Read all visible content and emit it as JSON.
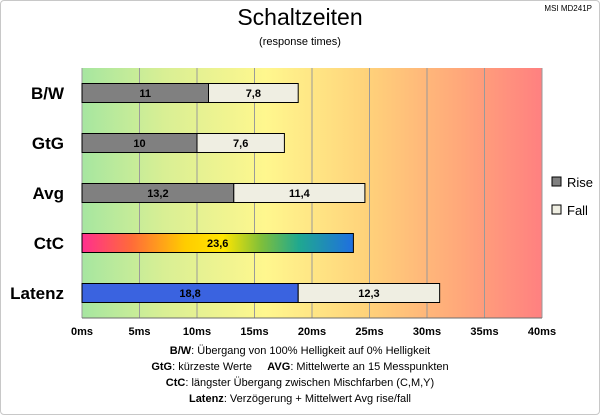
{
  "header": {
    "title": "Schaltzeiten",
    "subtitle": "(response times)",
    "model": "MSI MD241P"
  },
  "notes": [
    {
      "key": "B/W",
      "text": ":  Übergang von 100% Helligkeit auf 0% Helligkeit"
    },
    {
      "key": "GtG",
      "text": ": kürzeste  Werte",
      "key2": "AVG",
      "text2": ": Mittelwerte  an 15 Messpunkten"
    },
    {
      "key": "CtC",
      "text": ": längster Übergang  zwischen Mischfarben  (C,M,Y)"
    },
    {
      "key": "Latenz",
      "text": ": Verzögerung  + Mittelwert  Avg rise/fall"
    }
  ],
  "chart_data": {
    "type": "bar",
    "orientation": "horizontal",
    "stacked": true,
    "title": "Schaltzeiten",
    "subtitle": "(response times)",
    "categories": [
      "B/W",
      "GtG",
      "Avg",
      "CtC",
      "Latenz"
    ],
    "series": [
      {
        "name": "Rise",
        "values": [
          11,
          10,
          13.2,
          null,
          null
        ],
        "labels": [
          "11",
          "10",
          "13,2",
          "",
          ""
        ],
        "color": "#808080"
      },
      {
        "name": "Fall",
        "values": [
          7.8,
          7.6,
          11.4,
          null,
          12.3
        ],
        "labels": [
          "7,8",
          "7,6",
          "11,4",
          "",
          "12,3"
        ],
        "color": "#efeee2"
      }
    ],
    "single_bars": [
      {
        "category": "CtC",
        "value": 23.6,
        "label": "23,6",
        "fill": "rainbow"
      },
      {
        "category": "Latenz",
        "value": 18.8,
        "label": "18,8",
        "color": "#3a63e0"
      }
    ],
    "xlim": [
      0,
      40
    ],
    "xticks": [
      0,
      5,
      10,
      15,
      20,
      25,
      30,
      35,
      40
    ],
    "tick_labels": [
      "0ms",
      "5ms",
      "10ms",
      "15ms",
      "20ms",
      "25ms",
      "30ms",
      "35ms",
      "40ms"
    ],
    "grid": true,
    "background": "gradient green-yellow-red",
    "legend": {
      "position": "right",
      "entries": [
        "Rise",
        "Fall"
      ]
    }
  }
}
